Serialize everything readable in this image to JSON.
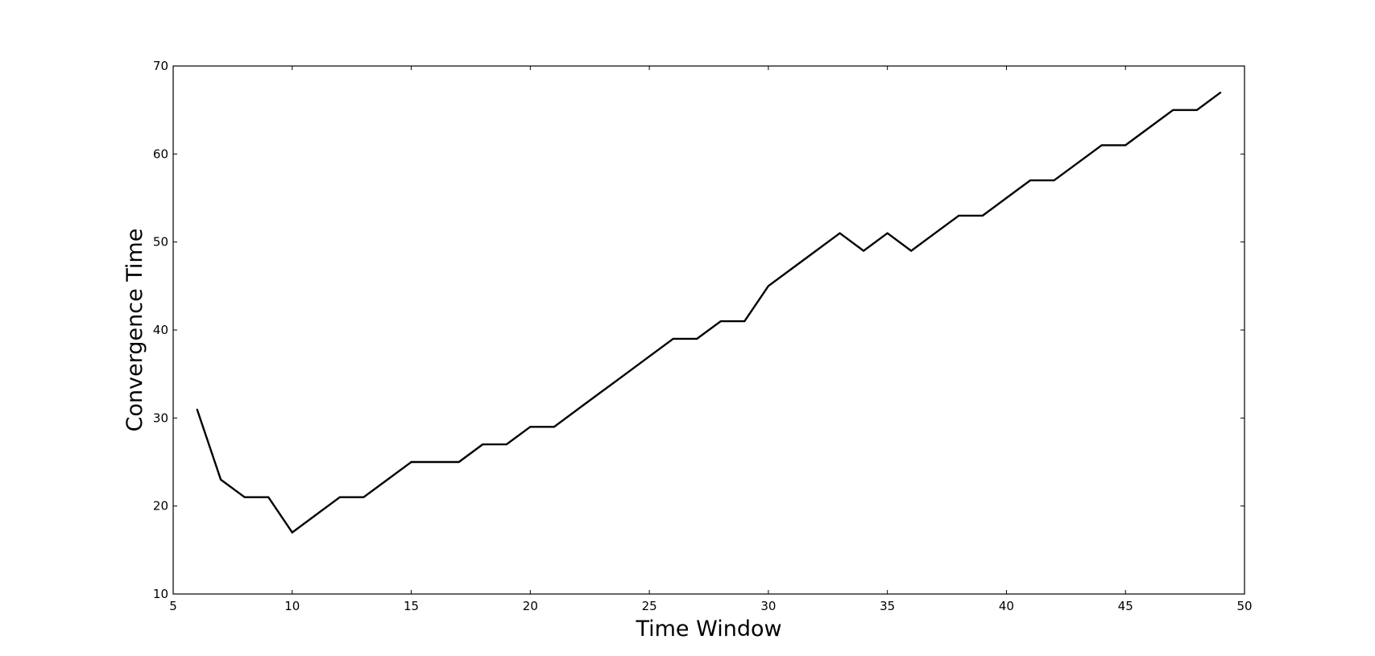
{
  "chart_data": {
    "type": "line",
    "title": "",
    "xlabel": "Time Window",
    "ylabel": "Convergence Time",
    "xlim": [
      5,
      50
    ],
    "ylim": [
      10,
      70
    ],
    "xticks": [
      5,
      10,
      15,
      20,
      25,
      30,
      35,
      40,
      45,
      50
    ],
    "yticks": [
      10,
      20,
      30,
      40,
      50,
      60,
      70
    ],
    "grid": false,
    "line_color": "#000000",
    "series": [
      {
        "x": [
          6,
          7,
          8,
          9,
          10,
          11,
          12,
          13,
          14,
          15,
          16,
          17,
          18,
          19,
          20,
          21,
          22,
          23,
          24,
          25,
          26,
          27,
          28,
          29,
          30,
          31,
          32,
          33,
          34,
          35,
          36,
          37,
          38,
          39,
          40,
          41,
          42,
          43,
          44,
          45,
          46,
          47,
          48,
          49
        ],
        "y": [
          31,
          23,
          21,
          21,
          17,
          19,
          21,
          21,
          23,
          25,
          25,
          25,
          27,
          27,
          29,
          29,
          31,
          33,
          35,
          37,
          39,
          39,
          41,
          41,
          45,
          47,
          49,
          51,
          49,
          51,
          49,
          51,
          53,
          53,
          55,
          57,
          57,
          59,
          61,
          61,
          63,
          65,
          65,
          67
        ]
      }
    ]
  }
}
